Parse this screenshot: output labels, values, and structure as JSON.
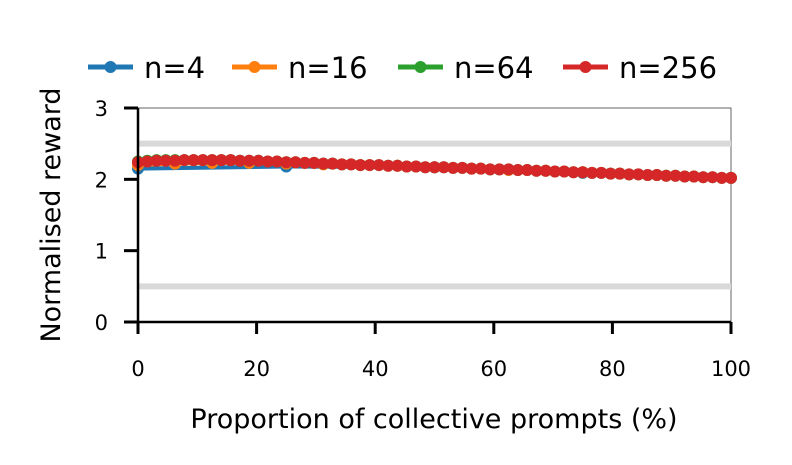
{
  "chart_data": {
    "type": "line",
    "xlabel": "Proportion of collective prompts (%)",
    "ylabel": "Normalised reward",
    "xlim": [
      0,
      100
    ],
    "ylim": [
      0,
      3
    ],
    "x_ticks": [
      "0",
      "20",
      "40",
      "60",
      "80",
      "100"
    ],
    "y_ticks": [
      "0",
      "1",
      "2",
      "3"
    ],
    "reference_lines": [
      0.5,
      2.5
    ],
    "legend_position": "top",
    "series": [
      {
        "name": "n=4",
        "color": "#1f77b4",
        "x": [
          0,
          25,
          50,
          75,
          100
        ],
        "y": [
          2.15,
          2.18,
          2.17,
          2.09,
          2.02
        ]
      },
      {
        "name": "n=16",
        "color": "#ff7f0e",
        "x": [
          0,
          6.25,
          12.5,
          18.75,
          25,
          31.25,
          37.5,
          43.75,
          50,
          56.25,
          62.5,
          68.75,
          75,
          81.25,
          87.5,
          93.75,
          100
        ],
        "y": [
          2.2,
          2.22,
          2.23,
          2.23,
          2.22,
          2.21,
          2.2,
          2.19,
          2.17,
          2.15,
          2.13,
          2.12,
          2.1,
          2.08,
          2.06,
          2.04,
          2.02
        ]
      },
      {
        "name": "n=64",
        "color": "#2ca02c",
        "x": [
          0,
          1.56,
          3.13,
          4.69,
          6.25,
          7.81,
          9.38,
          10.94,
          12.5,
          14.06,
          15.63,
          17.19,
          18.75,
          20.31,
          21.88,
          23.44,
          25,
          26.56,
          28.13,
          29.69,
          31.25,
          32.81,
          34.38,
          35.94,
          37.5,
          39.06,
          40.63,
          42.19,
          43.75,
          45.31,
          46.88,
          48.44,
          50,
          51.56,
          53.13,
          54.69,
          56.25,
          57.81,
          59.38,
          60.94,
          62.5,
          64.06,
          65.63,
          67.19,
          68.75,
          70.31,
          71.88,
          73.44,
          75,
          76.56,
          78.13,
          79.69,
          81.25,
          82.81,
          84.38,
          85.94,
          87.5,
          89.06,
          90.63,
          92.19,
          93.75,
          95.31,
          96.88,
          98.44,
          100
        ],
        "y": [
          2.25,
          2.26,
          2.27,
          2.27,
          2.27,
          2.27,
          2.27,
          2.27,
          2.27,
          2.27,
          2.27,
          2.26,
          2.26,
          2.26,
          2.25,
          2.25,
          2.24,
          2.24,
          2.23,
          2.23,
          2.22,
          2.22,
          2.21,
          2.21,
          2.2,
          2.2,
          2.2,
          2.19,
          2.19,
          2.18,
          2.18,
          2.17,
          2.17,
          2.17,
          2.16,
          2.16,
          2.15,
          2.15,
          2.14,
          2.14,
          2.14,
          2.13,
          2.13,
          2.12,
          2.12,
          2.11,
          2.11,
          2.1,
          2.1,
          2.09,
          2.09,
          2.08,
          2.08,
          2.07,
          2.07,
          2.06,
          2.06,
          2.05,
          2.05,
          2.04,
          2.04,
          2.03,
          2.03,
          2.02,
          2.02
        ]
      },
      {
        "name": "n=256",
        "color": "#d62728",
        "x": [
          0,
          1.56,
          3.13,
          4.69,
          6.25,
          7.81,
          9.38,
          10.94,
          12.5,
          14.06,
          15.63,
          17.19,
          18.75,
          20.31,
          21.88,
          23.44,
          25,
          26.56,
          28.13,
          29.69,
          31.25,
          32.81,
          34.38,
          35.94,
          37.5,
          39.06,
          40.63,
          42.19,
          43.75,
          45.31,
          46.88,
          48.44,
          50,
          51.56,
          53.13,
          54.69,
          56.25,
          57.81,
          59.38,
          60.94,
          62.5,
          64.06,
          65.63,
          67.19,
          68.75,
          70.31,
          71.88,
          73.44,
          75,
          76.56,
          78.13,
          79.69,
          81.25,
          82.81,
          84.38,
          85.94,
          87.5,
          89.06,
          90.63,
          92.19,
          93.75,
          95.31,
          96.88,
          98.44,
          100
        ],
        "y": [
          2.24,
          2.25,
          2.26,
          2.26,
          2.26,
          2.27,
          2.27,
          2.27,
          2.27,
          2.27,
          2.27,
          2.26,
          2.26,
          2.26,
          2.25,
          2.25,
          2.24,
          2.24,
          2.23,
          2.23,
          2.22,
          2.22,
          2.21,
          2.21,
          2.2,
          2.2,
          2.2,
          2.19,
          2.19,
          2.18,
          2.18,
          2.17,
          2.17,
          2.17,
          2.16,
          2.16,
          2.15,
          2.15,
          2.14,
          2.14,
          2.14,
          2.13,
          2.13,
          2.12,
          2.12,
          2.11,
          2.11,
          2.1,
          2.1,
          2.09,
          2.09,
          2.08,
          2.08,
          2.07,
          2.07,
          2.06,
          2.06,
          2.05,
          2.05,
          2.04,
          2.04,
          2.03,
          2.03,
          2.02,
          2.02
        ]
      }
    ]
  }
}
